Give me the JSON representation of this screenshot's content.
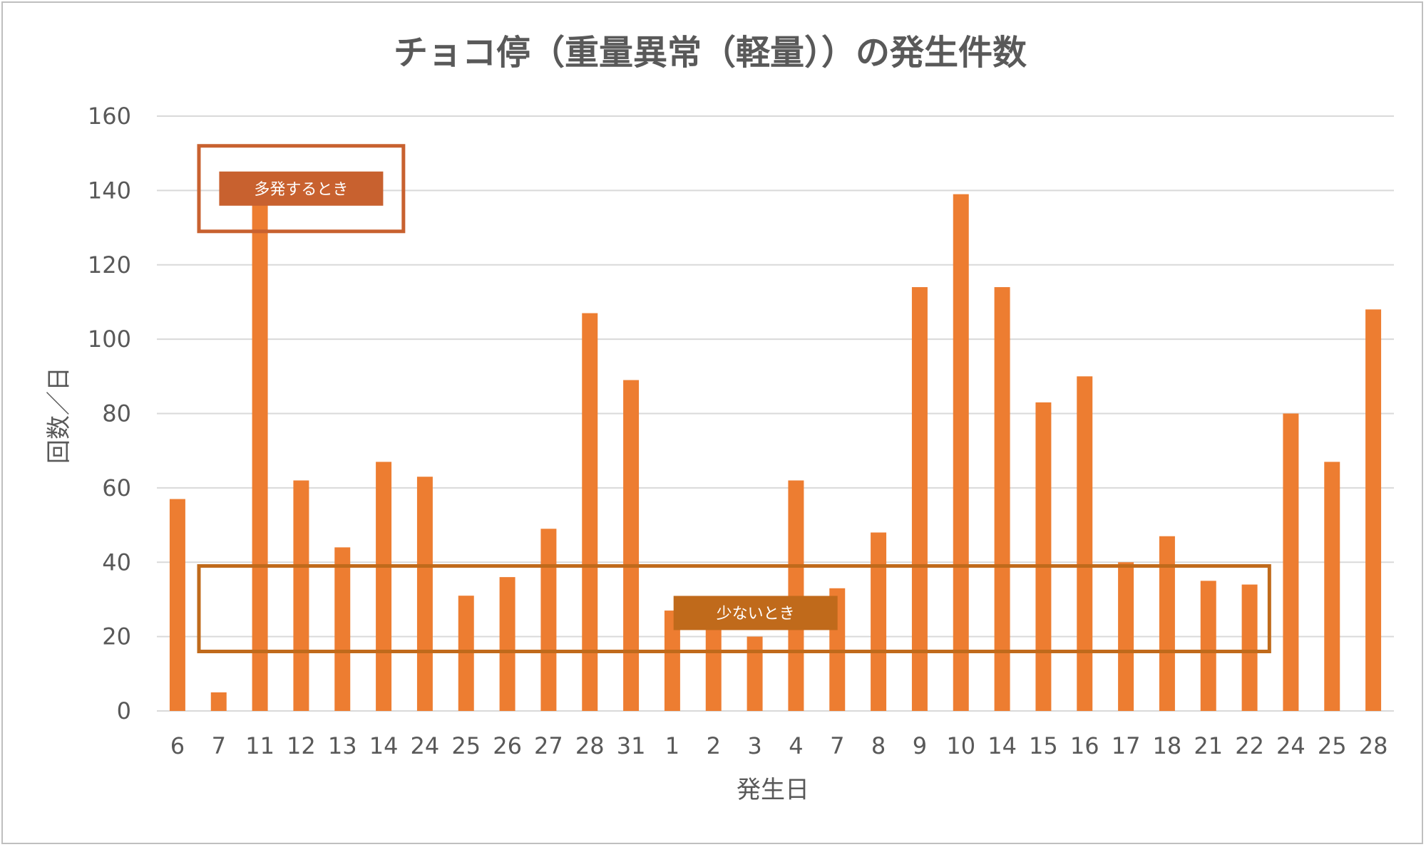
{
  "chart_data": {
    "type": "bar",
    "title": "チョコ停（重量異常（軽量））の発生件数",
    "xlabel": "発生日",
    "ylabel": "回数／日",
    "ylim": [
      0,
      160
    ],
    "yticks": [
      "0",
      "20",
      "40",
      "60",
      "80",
      "100",
      "120",
      "140",
      "160"
    ],
    "grid": true,
    "categories": [
      "6",
      "7",
      "11",
      "12",
      "13",
      "14",
      "24",
      "25",
      "26",
      "27",
      "28",
      "31",
      "1",
      "2",
      "3",
      "4",
      "7",
      "8",
      "9",
      "10",
      "14",
      "15",
      "16",
      "17",
      "18",
      "21",
      "22",
      "24",
      "25",
      "28"
    ],
    "series": [
      {
        "color": "#ed7d31",
        "values": [
          57,
          5,
          145,
          62,
          44,
          67,
          63,
          31,
          36,
          49,
          107,
          89,
          27,
          25,
          20,
          62,
          33,
          48,
          114,
          139,
          114,
          83,
          90,
          40,
          47,
          35,
          34,
          80,
          67,
          108
        ]
      }
    ],
    "annotations": [
      {
        "label": "多発するとき",
        "x_from": "7",
        "x_to": "14",
        "y_from": 129,
        "y_to": 152,
        "color": "#c8612f"
      },
      {
        "label": "少ないとき",
        "x_from": "7",
        "x_to": "22",
        "y_from": 16,
        "y_to": 39,
        "color": "#c06a1b"
      }
    ]
  }
}
